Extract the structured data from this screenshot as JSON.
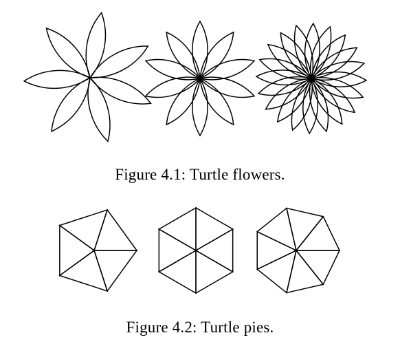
{
  "figures": [
    {
      "caption": "Figure 4.1: Turtle flowers.",
      "items": [
        {
          "kind": "flower",
          "petals": 7
        },
        {
          "kind": "flower",
          "petals": 10
        },
        {
          "kind": "flower",
          "petals": 20
        }
      ]
    },
    {
      "caption": "Figure 4.2: Turtle pies.",
      "items": [
        {
          "kind": "pie",
          "sides": 5
        },
        {
          "kind": "pie",
          "sides": 6
        },
        {
          "kind": "pie",
          "sides": 7
        }
      ]
    }
  ]
}
